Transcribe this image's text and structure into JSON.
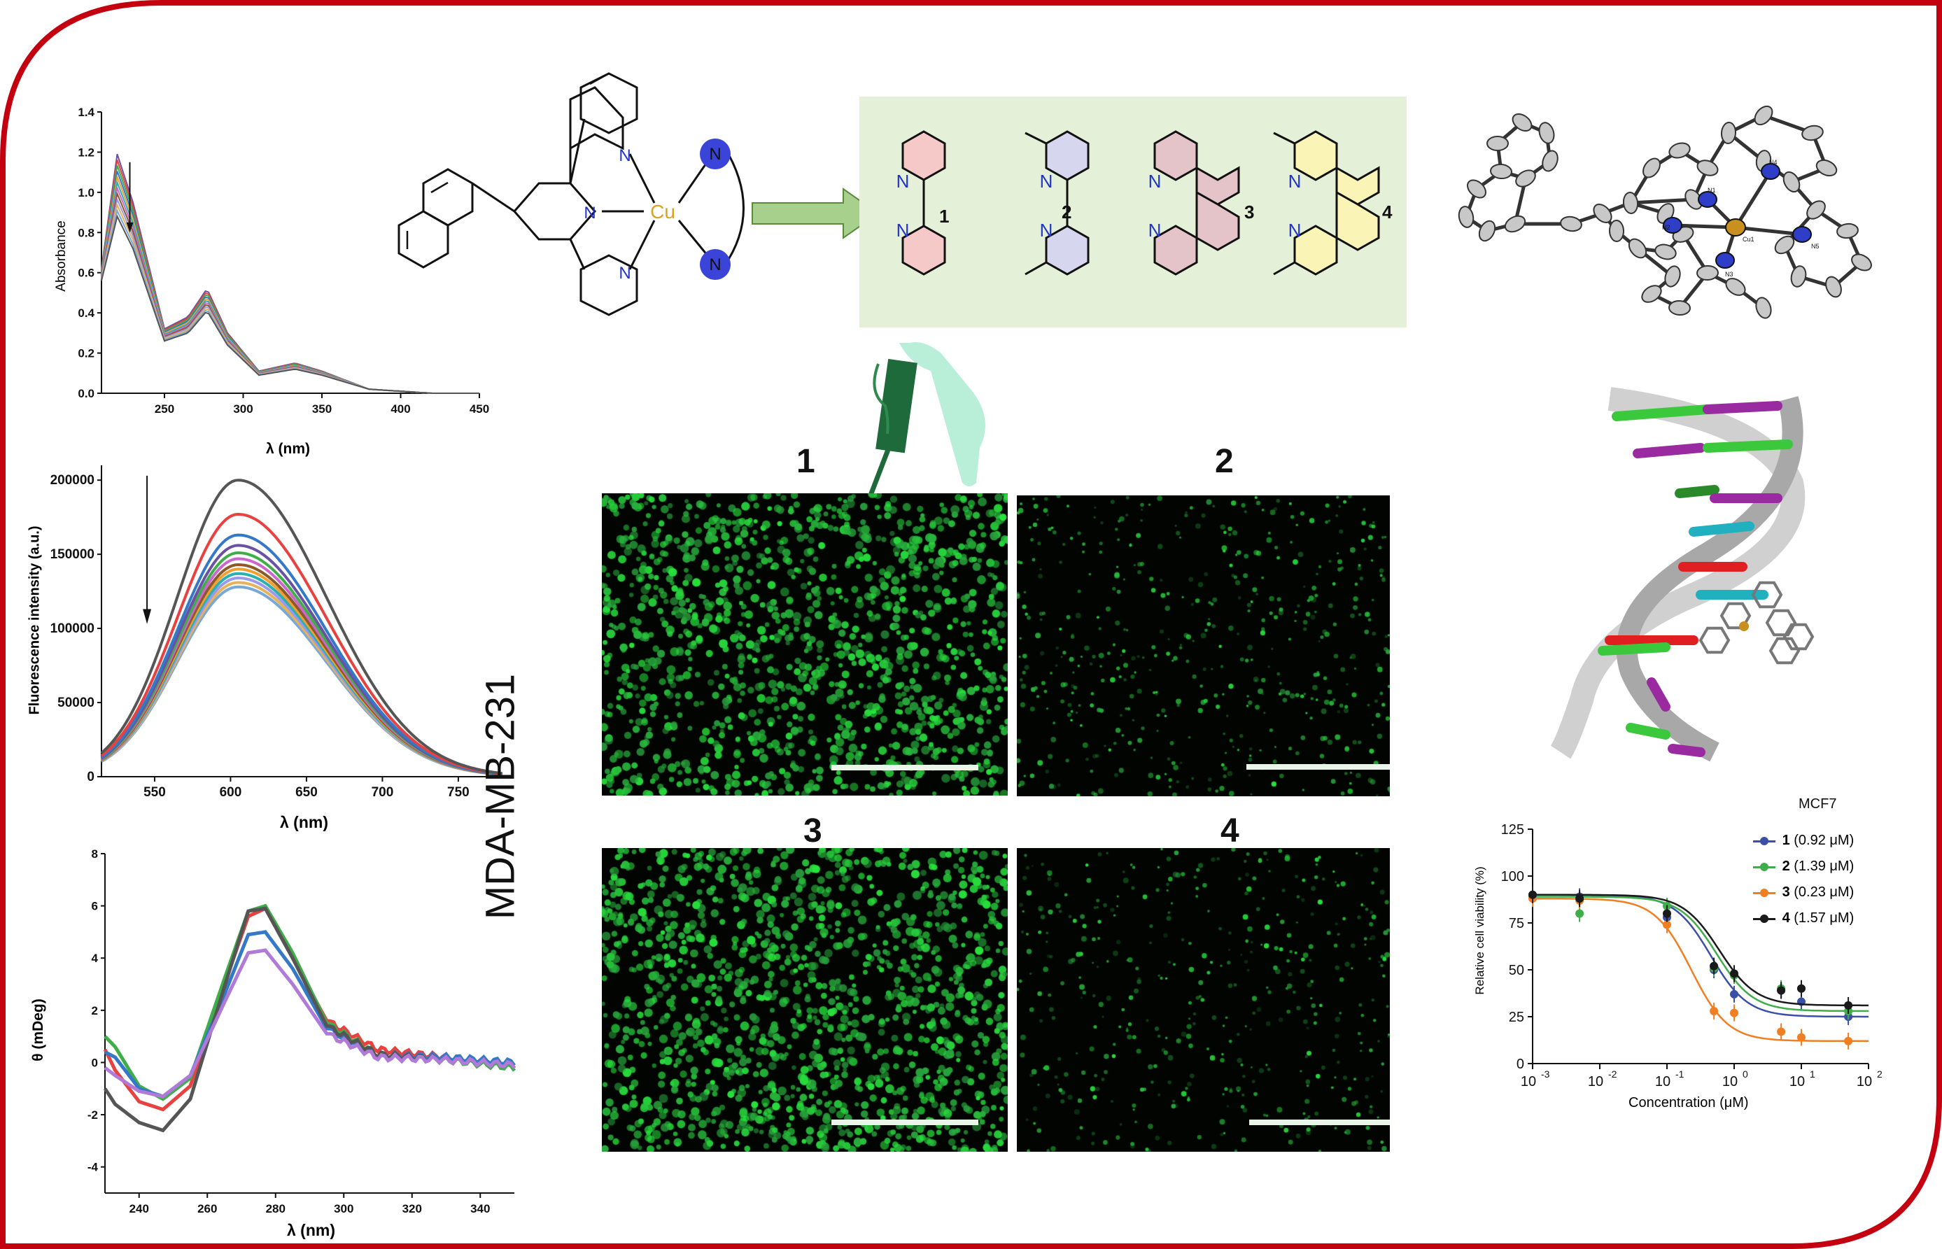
{
  "colors": {
    "frame_red": "#c40010",
    "micro_green": "#36c84a",
    "ligand_box_bg": "#e4f0d8",
    "arrow_green": "#a8d08d"
  },
  "chemistry": {
    "metal_label": "Cu",
    "n_label": "N",
    "ligand_numbers": [
      "1",
      "2",
      "3",
      "4"
    ]
  },
  "crystal_labels": [
    "N1",
    "N2",
    "N3",
    "N4",
    "N5",
    "Cu1"
  ],
  "absorbance": {
    "ylabel": "Absorbance",
    "xlabel": "λ (nm)",
    "yticks": [
      "0.0",
      "0.2",
      "0.4",
      "0.6",
      "0.8",
      "1.0",
      "1.2",
      "1.4"
    ],
    "xticks": [
      "250",
      "300",
      "350",
      "400",
      "450"
    ]
  },
  "fluorescence": {
    "ylabel": "Fluorescence intensity (a.u.)",
    "xlabel": "λ (nm)",
    "yticks": [
      "0",
      "50000",
      "100000",
      "150000",
      "200000"
    ],
    "xticks": [
      "550",
      "600",
      "650",
      "700",
      "750"
    ]
  },
  "cd": {
    "ylabel": "θ (mDeg)",
    "xlabel": "λ (nm)",
    "yticks": [
      "-4",
      "-2",
      "0",
      "2",
      "4",
      "6",
      "8"
    ],
    "xticks": [
      "240",
      "260",
      "280",
      "300",
      "320",
      "340"
    ]
  },
  "microscopy": {
    "cell_line": "MDA-MB-231",
    "panels": [
      "1",
      "2",
      "3",
      "4"
    ]
  },
  "viability": {
    "title": "MCF7",
    "ylabel": "Relative cell viability (%)",
    "xlabel": "Concentration (μM)",
    "yticks": [
      "0",
      "25",
      "50",
      "75",
      "100",
      "125"
    ],
    "xtick_base": "10",
    "xtick_exponents": [
      "-3",
      "-2",
      "-1",
      "0",
      "1",
      "2"
    ],
    "legend": [
      {
        "num": "1",
        "value": "(0.92 μM)",
        "color": "#3c4fa6"
      },
      {
        "num": "2",
        "value": "(1.39 μM)",
        "color": "#3fae49"
      },
      {
        "num": "3",
        "value": "(0.23 μM)",
        "color": "#f07f22"
      },
      {
        "num": "4",
        "value": "(1.57 μM)",
        "color": "#1a1a1a"
      }
    ]
  },
  "chart_data": [
    {
      "type": "line",
      "title": "",
      "xlabel": "λ (nm)",
      "ylabel": "Absorbance",
      "xlim": [
        210,
        450
      ],
      "ylim": [
        0,
        1.4
      ],
      "note_arrow": "downward arrow at peak",
      "series_count": 12,
      "peak_values_range": {
        "x": 220,
        "y": [
          0.88,
          1.19
        ]
      },
      "series": [
        {
          "x": [
            210,
            220,
            230,
            250,
            265,
            277,
            290,
            310,
            333,
            350,
            380,
            420,
            450
          ],
          "y": [
            0.62,
            1.19,
            0.95,
            0.32,
            0.38,
            0.52,
            0.3,
            0.11,
            0.15,
            0.11,
            0.02,
            0.0,
            0.0
          ]
        },
        {
          "x": [
            210,
            220,
            230,
            250,
            265,
            277,
            290,
            310,
            333,
            350,
            380,
            420,
            450
          ],
          "y": [
            0.56,
            0.88,
            0.72,
            0.26,
            0.3,
            0.41,
            0.24,
            0.09,
            0.12,
            0.09,
            0.02,
            0.0,
            0.0
          ]
        }
      ]
    },
    {
      "type": "line",
      "title": "",
      "xlabel": "λ (nm)",
      "ylabel": "Fluorescence intensity (a.u.)",
      "xlim": [
        515,
        780
      ],
      "ylim": [
        0,
        210000
      ],
      "peak_x": 605,
      "peak_values": [
        200000,
        177000,
        163000,
        156000,
        151000,
        147000,
        143000,
        140000,
        137000,
        134000,
        131000,
        128000
      ],
      "series_colors": [
        "#555555",
        "#e8413f",
        "#3478c8",
        "#6a51a3",
        "#3fae49",
        "#cc66cc",
        "#8b5a2b",
        "#f0a030",
        "#2ab0b0",
        "#9999ee",
        "#e6b35a",
        "#78a8d8"
      ]
    },
    {
      "type": "line",
      "title": "",
      "xlabel": "λ (nm)",
      "ylabel": "θ (mDeg)",
      "xlim": [
        230,
        350
      ],
      "ylim": [
        -5,
        8
      ],
      "series": [
        {
          "color": "#e8413f",
          "x": [
            230,
            233,
            240,
            247,
            255,
            265,
            272,
            277,
            285,
            295,
            310,
            330,
            350
          ],
          "y": [
            0.5,
            -0.3,
            -1.5,
            -1.8,
            -0.9,
            3.0,
            5.6,
            5.9,
            4.0,
            1.6,
            0.5,
            0.2,
            -0.1
          ]
        },
        {
          "color": "#3fae49",
          "x": [
            230,
            233,
            240,
            247,
            255,
            265,
            272,
            277,
            285,
            295,
            310,
            330,
            350
          ],
          "y": [
            1.0,
            0.6,
            -0.9,
            -1.4,
            -0.6,
            3.2,
            5.8,
            6.0,
            4.2,
            1.5,
            0.3,
            0.1,
            -0.2
          ]
        },
        {
          "color": "#3478c8",
          "x": [
            230,
            233,
            240,
            247,
            255,
            265,
            272,
            277,
            285,
            295,
            310,
            330,
            350
          ],
          "y": [
            0.4,
            0.2,
            -1.0,
            -1.3,
            -0.5,
            2.6,
            4.9,
            5.0,
            3.6,
            1.3,
            0.3,
            0.2,
            0.0
          ]
        },
        {
          "color": "#555555",
          "x": [
            230,
            233,
            240,
            247,
            255,
            265,
            272,
            277,
            285,
            295,
            310,
            330,
            350
          ],
          "y": [
            -1.0,
            -1.6,
            -2.3,
            -2.6,
            -1.4,
            2.9,
            5.8,
            5.9,
            4.0,
            1.4,
            0.3,
            0.1,
            -0.1
          ]
        },
        {
          "color": "#b07ad8",
          "x": [
            230,
            233,
            240,
            247,
            255,
            265,
            272,
            277,
            285,
            295,
            310,
            330,
            350
          ],
          "y": [
            -0.2,
            -0.5,
            -1.1,
            -1.3,
            -0.5,
            2.3,
            4.2,
            4.3,
            3.0,
            1.1,
            0.2,
            0.1,
            -0.1
          ]
        }
      ]
    },
    {
      "type": "scatter",
      "title": "MCF7",
      "xlabel": "Concentration (μM)",
      "ylabel": "Relative cell viability (%)",
      "xscale": "log",
      "xlim": [
        0.001,
        100
      ],
      "ylim": [
        0,
        125
      ],
      "x": [
        0.001,
        0.005,
        0.1,
        0.5,
        1,
        5,
        10,
        50
      ],
      "series": [
        {
          "name": "1",
          "color": "#3c4fa6",
          "values": [
            90,
            89,
            78,
            50,
            37,
            39,
            33,
            25
          ]
        },
        {
          "name": "2",
          "color": "#3fae49",
          "values": [
            89,
            80,
            84,
            51,
            47,
            40,
            40,
            28
          ]
        },
        {
          "name": "3",
          "color": "#f07f22",
          "values": [
            88,
            87,
            74,
            28,
            27,
            17,
            14,
            12
          ]
        },
        {
          "name": "4",
          "color": "#1a1a1a",
          "values": [
            90,
            88,
            80,
            52,
            48,
            39,
            40,
            31
          ]
        }
      ]
    }
  ]
}
